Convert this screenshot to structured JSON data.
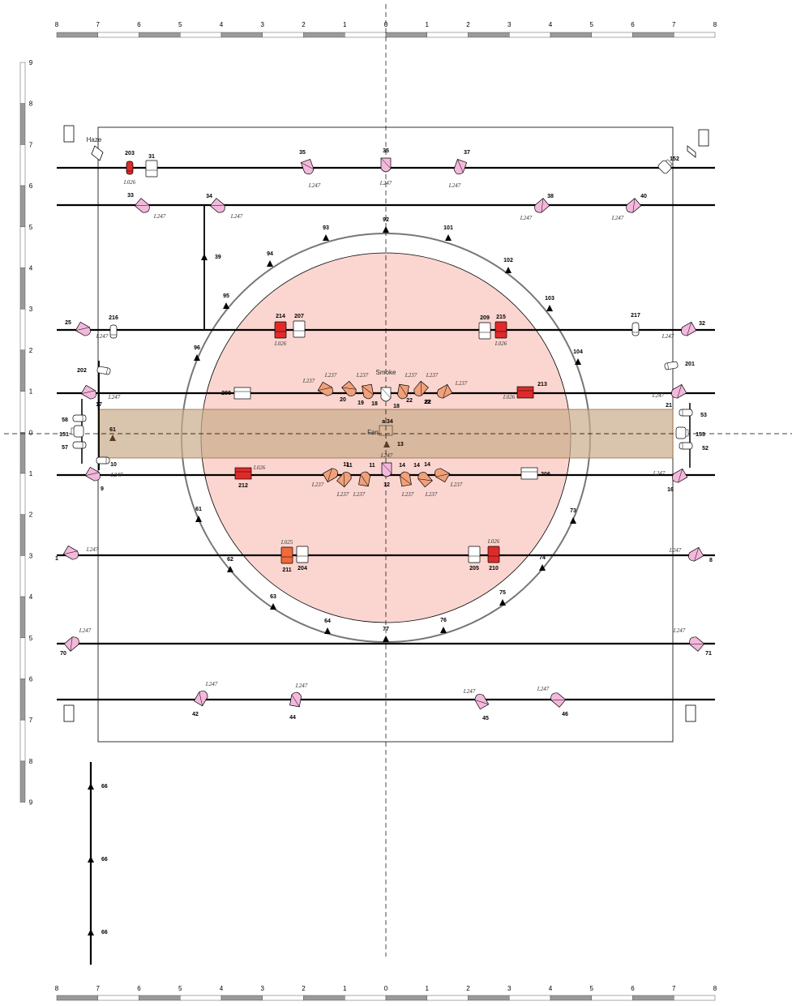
{
  "rulers": {
    "x_labels": [
      "8",
      "7",
      "6",
      "5",
      "4",
      "3",
      "2",
      "1",
      "0",
      "1",
      "2",
      "3",
      "4",
      "5",
      "6",
      "7",
      "8"
    ],
    "y_labels": [
      "9",
      "8",
      "7",
      "6",
      "5",
      "4",
      "3",
      "2",
      "1",
      "0",
      "1",
      "2",
      "3",
      "4",
      "5",
      "6",
      "7",
      "8",
      "9"
    ]
  },
  "misc_labels": {
    "haze": "Haze",
    "smoke": "Smoke",
    "fan": "Fan",
    "fan_addr": "a.34"
  },
  "colors": {
    "pink_fixture": "#f4b8dc",
    "orange_fixture": "#f0a07a",
    "red_fixture": "#e02a2a",
    "center_circle": "#fbd6d0",
    "band": "#c9ab8a",
    "pipe": "#000000"
  },
  "fixtures": [
    {
      "id": "f203",
      "num": "203",
      "gel": "L026",
      "kind": "red",
      "icon": "par-icon"
    },
    {
      "id": "f31",
      "num": "31",
      "gel": "",
      "kind": "outline",
      "icon": "fresnel-icon"
    },
    {
      "id": "f35a",
      "num": "35",
      "gel": "L247",
      "kind": "pink",
      "icon": "profile-icon"
    },
    {
      "id": "f35b",
      "num": "35",
      "gel": "L247",
      "kind": "pink",
      "icon": "profile-icon"
    },
    {
      "id": "f37",
      "num": "37",
      "gel": "L247",
      "kind": "pink",
      "icon": "profile-icon"
    },
    {
      "id": "f152",
      "num": "152",
      "gel": "",
      "kind": "outline",
      "icon": "moving-head-icon"
    },
    {
      "id": "f33",
      "num": "33",
      "gel": "L247",
      "kind": "pink",
      "icon": "profile-icon"
    },
    {
      "id": "f34",
      "num": "34",
      "gel": "L247",
      "kind": "pink",
      "icon": "profile-icon"
    },
    {
      "id": "f38",
      "num": "38",
      "gel": "L247",
      "kind": "pink",
      "icon": "profile-icon"
    },
    {
      "id": "f40",
      "num": "40",
      "gel": "L247",
      "kind": "pink",
      "icon": "profile-icon"
    },
    {
      "id": "f25",
      "num": "25",
      "gel": "L247",
      "kind": "pink",
      "icon": "profile-icon"
    },
    {
      "id": "f216",
      "num": "216",
      "gel": "",
      "kind": "outline",
      "icon": "par-icon"
    },
    {
      "id": "f214",
      "num": "214",
      "gel": "L026",
      "kind": "red",
      "icon": "fresnel-icon"
    },
    {
      "id": "f207",
      "num": "207",
      "gel": "",
      "kind": "outline",
      "icon": "fresnel-icon"
    },
    {
      "id": "f209",
      "num": "209",
      "gel": "",
      "kind": "outline",
      "icon": "fresnel-icon"
    },
    {
      "id": "f215",
      "num": "215",
      "gel": "L026",
      "kind": "red",
      "icon": "fresnel-icon"
    },
    {
      "id": "f217",
      "num": "217",
      "gel": "",
      "kind": "outline",
      "icon": "par-icon"
    },
    {
      "id": "f32",
      "num": "32",
      "gel": "L247",
      "kind": "pink",
      "icon": "profile-icon"
    },
    {
      "id": "f202",
      "num": "202",
      "gel": "",
      "kind": "outline",
      "icon": "par-icon"
    },
    {
      "id": "f201",
      "num": "201",
      "gel": "",
      "kind": "outline",
      "icon": "par-icon"
    },
    {
      "id": "f17",
      "num": "17",
      "gel": "L247",
      "kind": "pink",
      "icon": "profile-icon"
    },
    {
      "id": "f208",
      "num": "208",
      "gel": "",
      "kind": "outline",
      "icon": "flood-icon"
    },
    {
      "id": "f20",
      "num": "20",
      "gel": "L237",
      "kind": "orange",
      "icon": "profile-icon"
    },
    {
      "id": "f19",
      "num": "19",
      "gel": "L237",
      "kind": "orange",
      "icon": "profile-icon"
    },
    {
      "id": "f18a",
      "num": "18",
      "gel": "L237",
      "kind": "orange",
      "icon": "profile-icon"
    },
    {
      "id": "f18b",
      "num": "18",
      "gel": "",
      "kind": "outline",
      "icon": "profile-icon"
    },
    {
      "id": "f22a",
      "num": "22",
      "gel": "L237",
      "kind": "orange",
      "icon": "profile-icon"
    },
    {
      "id": "f22b",
      "num": "22",
      "gel": "L237",
      "kind": "orange",
      "icon": "profile-icon"
    },
    {
      "id": "f22c",
      "num": "22",
      "gel": "L237",
      "kind": "orange",
      "icon": "profile-icon"
    },
    {
      "id": "f213",
      "num": "213",
      "gel": "L026",
      "kind": "red",
      "icon": "flood-icon"
    },
    {
      "id": "f21",
      "num": "21",
      "gel": "L247",
      "kind": "pink",
      "icon": "profile-icon"
    },
    {
      "id": "f58",
      "num": "58",
      "gel": "",
      "kind": "outline",
      "icon": "par-icon"
    },
    {
      "id": "f151",
      "num": "151",
      "gel": "",
      "kind": "outline",
      "icon": "moving-head-icon"
    },
    {
      "id": "f57",
      "num": "57",
      "gel": "",
      "kind": "outline",
      "icon": "par-icon"
    },
    {
      "id": "f53",
      "num": "53",
      "gel": "",
      "kind": "outline",
      "icon": "par-icon"
    },
    {
      "id": "f153",
      "num": "153",
      "gel": "",
      "kind": "outline",
      "icon": "moving-head-icon"
    },
    {
      "id": "f52",
      "num": "52",
      "gel": "",
      "kind": "outline",
      "icon": "par-icon"
    },
    {
      "id": "f10",
      "num": "10",
      "gel": "",
      "kind": "outline",
      "icon": "par-icon"
    },
    {
      "id": "f9",
      "num": "9",
      "gel": "L247",
      "kind": "pink",
      "icon": "profile-icon"
    },
    {
      "id": "f212",
      "num": "212",
      "gel": "L026",
      "kind": "red",
      "icon": "flood-icon"
    },
    {
      "id": "f11a",
      "num": "11",
      "gel": "L237",
      "kind": "orange",
      "icon": "profile-icon"
    },
    {
      "id": "f11b",
      "num": "11",
      "gel": "L237",
      "kind": "orange",
      "icon": "profile-icon"
    },
    {
      "id": "f11c",
      "num": "11",
      "gel": "L237",
      "kind": "orange",
      "icon": "profile-icon"
    },
    {
      "id": "f12",
      "num": "12",
      "gel": "L247",
      "kind": "pink",
      "icon": "profile-icon"
    },
    {
      "id": "f14a",
      "num": "14",
      "gel": "L237",
      "kind": "orange",
      "icon": "profile-icon"
    },
    {
      "id": "f14b",
      "num": "14",
      "gel": "L237",
      "kind": "orange",
      "icon": "profile-icon"
    },
    {
      "id": "f14c",
      "num": "14",
      "gel": "L237",
      "kind": "orange",
      "icon": "profile-icon"
    },
    {
      "id": "f206",
      "num": "206",
      "gel": "",
      "kind": "outline",
      "icon": "flood-icon"
    },
    {
      "id": "f16",
      "num": "16",
      "gel": "L247",
      "kind": "pink",
      "icon": "profile-icon"
    },
    {
      "id": "f1",
      "num": "1",
      "gel": "L247",
      "kind": "pink",
      "icon": "profile-icon"
    },
    {
      "id": "f211",
      "num": "211",
      "gel": "L025",
      "kind": "orange-red",
      "icon": "fresnel-icon"
    },
    {
      "id": "f204",
      "num": "204",
      "gel": "",
      "kind": "outline",
      "icon": "fresnel-icon"
    },
    {
      "id": "f205",
      "num": "205",
      "gel": "",
      "kind": "outline",
      "icon": "fresnel-icon"
    },
    {
      "id": "f210",
      "num": "210",
      "gel": "L026",
      "kind": "red",
      "icon": "fresnel-icon"
    },
    {
      "id": "f8",
      "num": "8",
      "gel": "L247",
      "kind": "pink",
      "icon": "profile-icon"
    },
    {
      "id": "f70",
      "num": "70",
      "gel": "L247",
      "kind": "pink",
      "icon": "profile-icon"
    },
    {
      "id": "f71",
      "num": "71",
      "gel": "L247",
      "kind": "pink",
      "icon": "profile-icon"
    },
    {
      "id": "f42",
      "num": "42",
      "gel": "L247",
      "kind": "pink",
      "icon": "profile-icon"
    },
    {
      "id": "f44",
      "num": "44",
      "gel": "L247",
      "kind": "pink",
      "icon": "profile-icon"
    },
    {
      "id": "f45",
      "num": "45",
      "gel": "L247",
      "kind": "pink",
      "icon": "profile-icon"
    },
    {
      "id": "f46",
      "num": "46",
      "gel": "L247",
      "kind": "pink",
      "icon": "profile-icon"
    }
  ],
  "speakers": [
    {
      "id": "s92",
      "num": "92"
    },
    {
      "id": "s93",
      "num": "93"
    },
    {
      "id": "s101",
      "num": "101"
    },
    {
      "id": "s94",
      "num": "94"
    },
    {
      "id": "s102",
      "num": "102"
    },
    {
      "id": "s95",
      "num": "95"
    },
    {
      "id": "s103",
      "num": "103"
    },
    {
      "id": "s96",
      "num": "96"
    },
    {
      "id": "s104",
      "num": "104"
    },
    {
      "id": "s39",
      "num": "39"
    },
    {
      "id": "s61a",
      "num": "61"
    },
    {
      "id": "s13",
      "num": "13"
    },
    {
      "id": "s61b",
      "num": "61"
    },
    {
      "id": "s73",
      "num": "73"
    },
    {
      "id": "s62",
      "num": "62"
    },
    {
      "id": "s74",
      "num": "74"
    },
    {
      "id": "s63",
      "num": "63"
    },
    {
      "id": "s75",
      "num": "75"
    },
    {
      "id": "s64",
      "num": "64"
    },
    {
      "id": "s77",
      "num": "77"
    },
    {
      "id": "s76",
      "num": "76"
    },
    {
      "id": "s66a",
      "num": "66"
    },
    {
      "id": "s66b",
      "num": "66"
    },
    {
      "id": "s66c",
      "num": "66"
    }
  ]
}
